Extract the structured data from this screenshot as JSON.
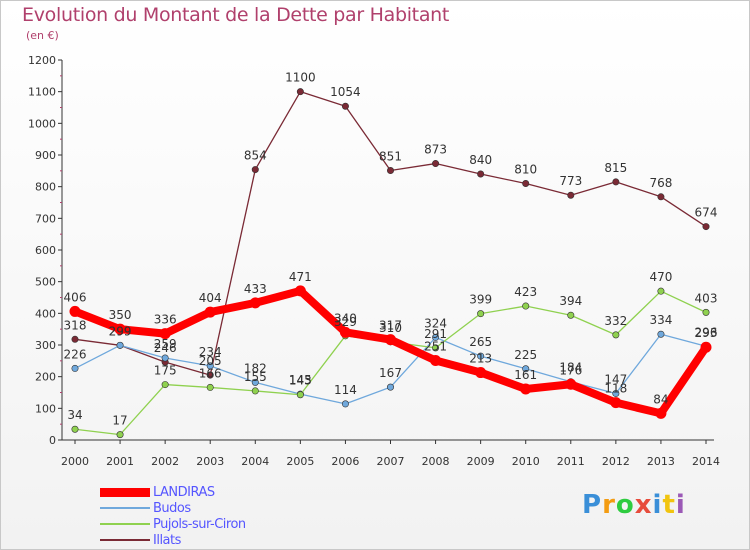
{
  "title": "Evolution du Montant de la Dette par Habitant",
  "unit_label": "(en €)",
  "logo_text": "Proxiti",
  "chart_data": {
    "type": "line",
    "title": "Evolution du Montant de la Dette par Habitant",
    "ylabel": "(en €)",
    "xlabel": "",
    "x": [
      "2000",
      "2001",
      "2002",
      "2003",
      "2004",
      "2005",
      "2006",
      "2007",
      "2008",
      "2009",
      "2010",
      "2011",
      "2012",
      "2013",
      "2014"
    ],
    "ylim": [
      0,
      1200
    ],
    "yticks": [
      0,
      100,
      200,
      300,
      400,
      500,
      600,
      700,
      800,
      900,
      1000,
      1100,
      1200
    ],
    "grid": false,
    "legend_position": "bottom-left",
    "series": [
      {
        "name": "LANDIRAS",
        "color": "#ff0000",
        "values": [
          406,
          350,
          336,
          404,
          433,
          471,
          340,
          317,
          251,
          213,
          161,
          176,
          118,
          84,
          293
        ]
      },
      {
        "name": "Budos",
        "color": "#6fa8dc",
        "values": [
          226,
          299,
          259,
          234,
          182,
          145,
          114,
          167,
          324,
          265,
          225,
          184,
          147,
          334,
          296
        ]
      },
      {
        "name": "Pujols-sur-Ciron",
        "color": "#8fd14f",
        "values": [
          34,
          17,
          175,
          166,
          155,
          143,
          329,
          310,
          291,
          399,
          423,
          394,
          332,
          470,
          403
        ]
      },
      {
        "name": "Illats",
        "color": "#7a2a35",
        "values": [
          318,
          299,
          246,
          205,
          854,
          1100,
          1054,
          851,
          873,
          840,
          810,
          773,
          815,
          768,
          674
        ]
      }
    ]
  }
}
